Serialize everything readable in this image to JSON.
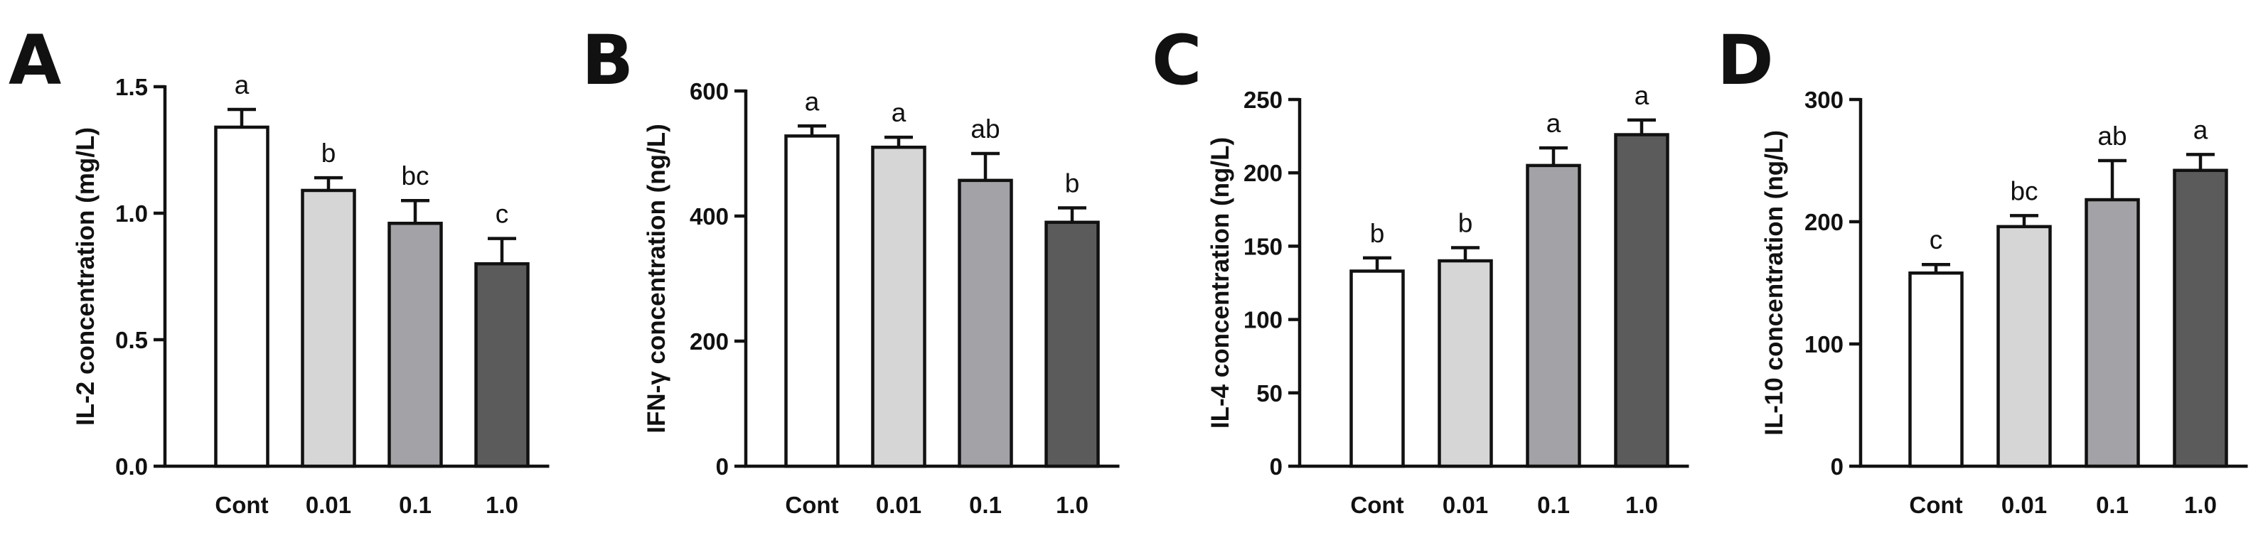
{
  "colors": {
    "bar_fills": [
      "#ffffff",
      "#d6d6d6",
      "#a3a2a7",
      "#5b5b5b"
    ],
    "ink": "#111111",
    "background": "#ffffff"
  },
  "chart_data": [
    {
      "type": "bar",
      "panel": "A",
      "title": "",
      "xlabel": "",
      "ylabel": "IL-2 concentration (mg/L)",
      "categories": [
        "Cont",
        "0.01",
        "0.1",
        "1.0"
      ],
      "values": [
        1.34,
        1.09,
        0.96,
        0.8
      ],
      "errors": [
        0.07,
        0.05,
        0.09,
        0.1
      ],
      "significance": [
        "a",
        "b",
        "bc",
        "c"
      ],
      "ylim": [
        0,
        1.5
      ],
      "yticks": [
        0,
        0.5,
        1.0,
        1.5
      ],
      "ytick_labels": [
        "0.0",
        "0.5",
        "1.0",
        "1.5"
      ],
      "grid": false
    },
    {
      "type": "bar",
      "panel": "B",
      "title": "",
      "xlabel": "",
      "ylabel": "IFN-γ concentration (ng/L)",
      "categories": [
        "Cont",
        "0.01",
        "0.1",
        "1.0"
      ],
      "values": [
        528,
        510,
        457,
        390
      ],
      "errors": [
        16,
        16,
        43,
        23
      ],
      "significance": [
        "a",
        "a",
        "ab",
        "b"
      ],
      "ylim": [
        0,
        600
      ],
      "yticks": [
        0,
        200,
        400,
        600
      ],
      "ytick_labels": [
        "0",
        "200",
        "400",
        "600"
      ],
      "grid": false
    },
    {
      "type": "bar",
      "panel": "C",
      "title": "",
      "xlabel": "",
      "ylabel": "IL-4 concentration (ng/L)",
      "categories": [
        "Cont",
        "0.01",
        "0.1",
        "1.0"
      ],
      "values": [
        133,
        140,
        205,
        226
      ],
      "errors": [
        9,
        9,
        12,
        10
      ],
      "significance": [
        "b",
        "b",
        "a",
        "a"
      ],
      "ylim": [
        0,
        250
      ],
      "yticks": [
        0,
        50,
        100,
        150,
        200,
        250
      ],
      "ytick_labels": [
        "0",
        "50",
        "100",
        "150",
        "200",
        "250"
      ],
      "grid": false
    },
    {
      "type": "bar",
      "panel": "D",
      "title": "",
      "xlabel": "",
      "ylabel": "IL-10 concentration (ng/L)",
      "categories": [
        "Cont",
        "0.01",
        "0.1",
        "1.0"
      ],
      "values": [
        158,
        196,
        218,
        242
      ],
      "errors": [
        7,
        9,
        32,
        13
      ],
      "significance": [
        "c",
        "bc",
        "ab",
        "a"
      ],
      "ylim": [
        0,
        300
      ],
      "yticks": [
        0,
        100,
        200,
        300
      ],
      "ytick_labels": [
        "0",
        "100",
        "200",
        "300"
      ],
      "grid": false
    }
  ]
}
